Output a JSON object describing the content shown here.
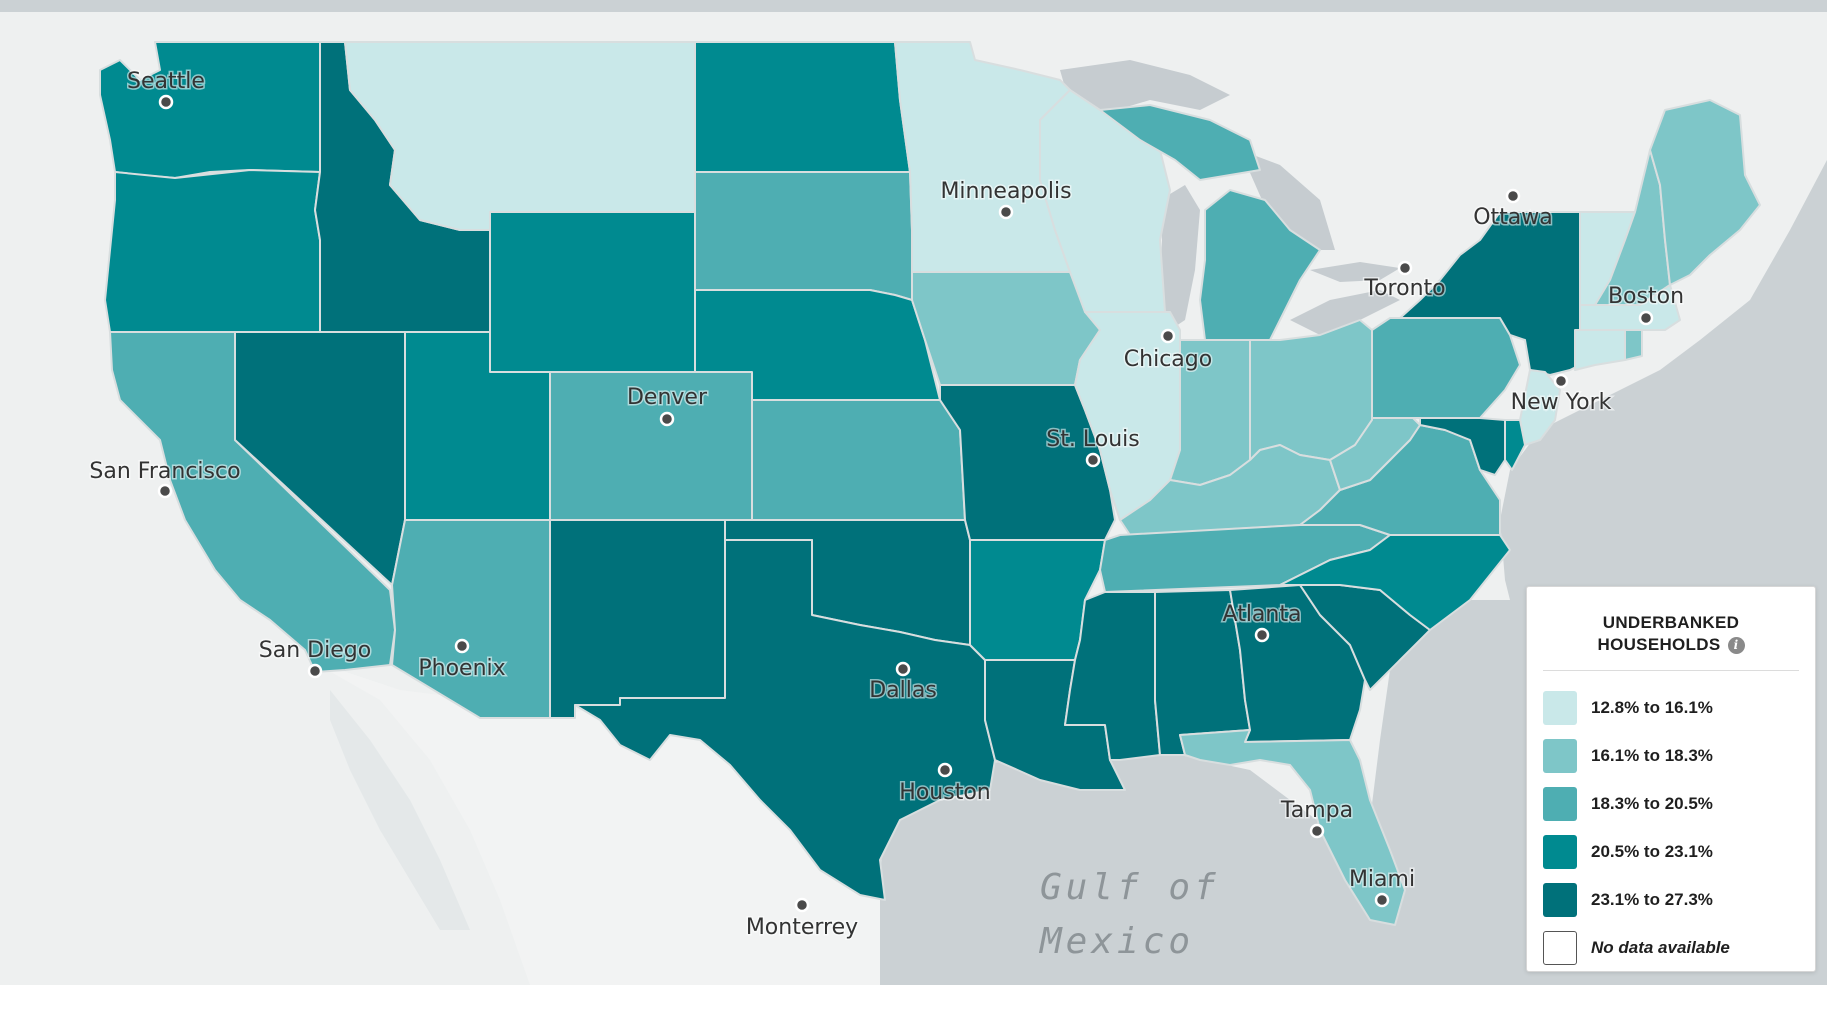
{
  "map": {
    "water_label": "Gulf of Mexico",
    "water_lines": [
      "Gulf of",
      "Mexico"
    ],
    "colors": {
      "water": "#cbd1d4",
      "land": "#eef0f0",
      "lakes": "#c6ccd0",
      "c1": "#c9e8e9",
      "c2": "#7ec6c8",
      "c3": "#4eaeb2",
      "c4": "#008a90",
      "c5": "#00717a"
    },
    "cities": [
      {
        "name": "Seattle"
      },
      {
        "name": "San Francisco"
      },
      {
        "name": "San Diego"
      },
      {
        "name": "Phoenix"
      },
      {
        "name": "Denver"
      },
      {
        "name": "Minneapolis"
      },
      {
        "name": "Chicago"
      },
      {
        "name": "St. Louis"
      },
      {
        "name": "Dallas"
      },
      {
        "name": "Houston"
      },
      {
        "name": "Atlanta"
      },
      {
        "name": "Tampa"
      },
      {
        "name": "Miami"
      },
      {
        "name": "New York"
      },
      {
        "name": "Boston"
      },
      {
        "name": "Toronto"
      },
      {
        "name": "Ottawa"
      },
      {
        "name": "Monterrey"
      }
    ],
    "states": [
      {
        "name": "WA",
        "bin": 4
      },
      {
        "name": "OR",
        "bin": 4
      },
      {
        "name": "CA",
        "bin": 3
      },
      {
        "name": "NV",
        "bin": 5
      },
      {
        "name": "ID",
        "bin": 5
      },
      {
        "name": "MT",
        "bin": 1
      },
      {
        "name": "WY",
        "bin": 4
      },
      {
        "name": "UT",
        "bin": 4
      },
      {
        "name": "AZ",
        "bin": 3
      },
      {
        "name": "CO",
        "bin": 3
      },
      {
        "name": "NM",
        "bin": 5
      },
      {
        "name": "ND",
        "bin": 4
      },
      {
        "name": "SD",
        "bin": 3
      },
      {
        "name": "NE",
        "bin": 4
      },
      {
        "name": "KS",
        "bin": 3
      },
      {
        "name": "OK",
        "bin": 5
      },
      {
        "name": "TX",
        "bin": 5
      },
      {
        "name": "MN",
        "bin": 1
      },
      {
        "name": "IA",
        "bin": 2
      },
      {
        "name": "MO",
        "bin": 5
      },
      {
        "name": "AR",
        "bin": 4
      },
      {
        "name": "LA",
        "bin": 5
      },
      {
        "name": "WI",
        "bin": 1
      },
      {
        "name": "IL",
        "bin": 1
      },
      {
        "name": "MI",
        "bin": 3
      },
      {
        "name": "IN",
        "bin": 2
      },
      {
        "name": "OH",
        "bin": 2
      },
      {
        "name": "KY",
        "bin": 2
      },
      {
        "name": "TN",
        "bin": 3
      },
      {
        "name": "MS",
        "bin": 5
      },
      {
        "name": "AL",
        "bin": 5
      },
      {
        "name": "GA",
        "bin": 5
      },
      {
        "name": "FL",
        "bin": 2
      },
      {
        "name": "SC",
        "bin": 5
      },
      {
        "name": "NC",
        "bin": 4
      },
      {
        "name": "VA",
        "bin": 3
      },
      {
        "name": "WV",
        "bin": 2
      },
      {
        "name": "PA",
        "bin": 3
      },
      {
        "name": "NY",
        "bin": 5
      },
      {
        "name": "VT",
        "bin": 1
      },
      {
        "name": "NH",
        "bin": 2
      },
      {
        "name": "ME",
        "bin": 2
      },
      {
        "name": "MA",
        "bin": 1
      },
      {
        "name": "CT",
        "bin": 1
      },
      {
        "name": "RI",
        "bin": 2
      },
      {
        "name": "NJ",
        "bin": 1
      },
      {
        "name": "DE",
        "bin": 4
      },
      {
        "name": "MD",
        "bin": 5
      }
    ]
  },
  "legend": {
    "title_line1": "UNDERBANKED",
    "title_line2": "HOUSEHOLDS",
    "info_icon": "info-icon",
    "items": [
      {
        "label": "12.8% to 16.1%",
        "color": "#c9e8e9"
      },
      {
        "label": "16.1% to 18.3%",
        "color": "#7ec6c8"
      },
      {
        "label": "18.3% to 20.5%",
        "color": "#4eaeb2"
      },
      {
        "label": "20.5% to 23.1%",
        "color": "#008a90"
      },
      {
        "label": "23.1% to 27.3%",
        "color": "#00717a"
      },
      {
        "label": "No data available",
        "color": "#ffffff"
      }
    ]
  }
}
